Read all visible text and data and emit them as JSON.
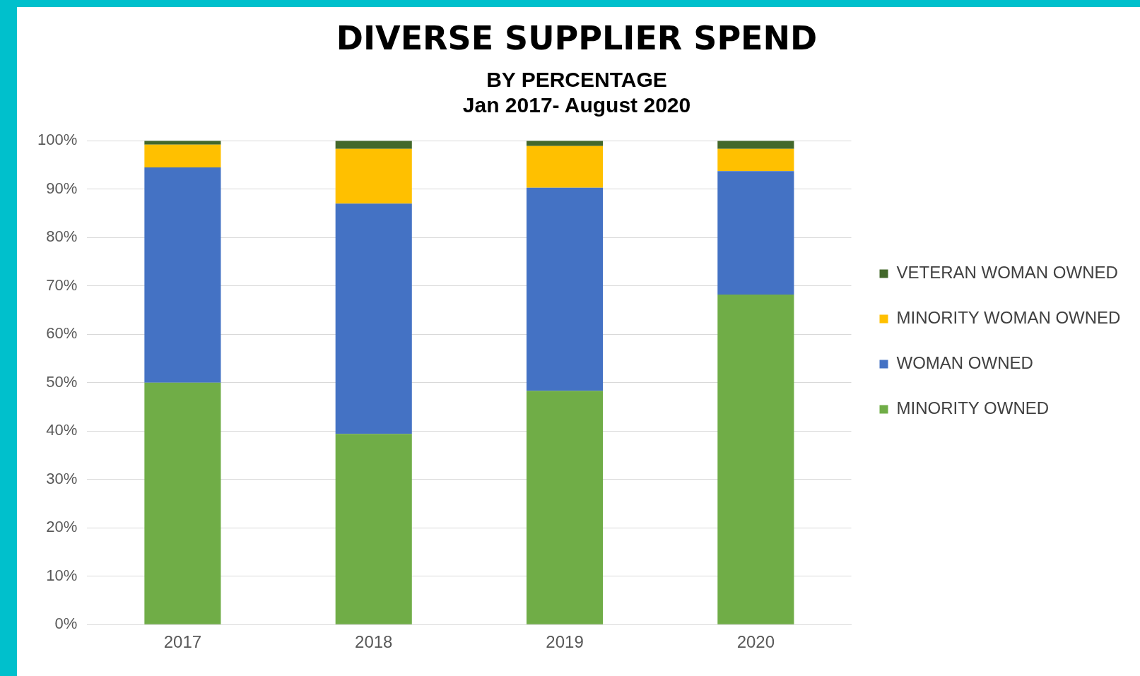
{
  "chart_data": {
    "type": "bar",
    "title": "DIVERSE SUPPLIER SPEND",
    "subtitle": "BY PERCENTAGE\nJan 2017- August 2020",
    "categories": [
      "2017",
      "2018",
      "2019",
      "2020"
    ],
    "stacked": true,
    "series": [
      {
        "name": "MINORITY OWNED",
        "color": "#70ad47",
        "values": [
          50.0,
          39.4,
          48.3,
          68.2
        ]
      },
      {
        "name": "WOMAN OWNED",
        "color": "#4472c4",
        "values": [
          44.5,
          47.6,
          42.0,
          25.5
        ]
      },
      {
        "name": "MINORITY WOMAN OWNED",
        "color": "#ffc000",
        "values": [
          4.7,
          11.3,
          8.6,
          4.6
        ]
      },
      {
        "name": "VETERAN WOMAN OWNED",
        "color": "#43682b",
        "values": [
          0.8,
          1.7,
          1.1,
          1.7
        ]
      }
    ],
    "ylim": [
      0,
      100
    ],
    "yticks": [
      {
        "value": 0,
        "label": "0%"
      },
      {
        "value": 10,
        "label": "10%"
      },
      {
        "value": 20,
        "label": "20%"
      },
      {
        "value": 30,
        "label": "30%"
      },
      {
        "value": 40,
        "label": "40%"
      },
      {
        "value": 50,
        "label": "50%"
      },
      {
        "value": 60,
        "label": "60%"
      },
      {
        "value": 70,
        "label": "70%"
      },
      {
        "value": 80,
        "label": "80%"
      },
      {
        "value": 90,
        "label": "90%"
      },
      {
        "value": 100,
        "label": "100%"
      }
    ],
    "grid": "y",
    "legend": "right"
  }
}
